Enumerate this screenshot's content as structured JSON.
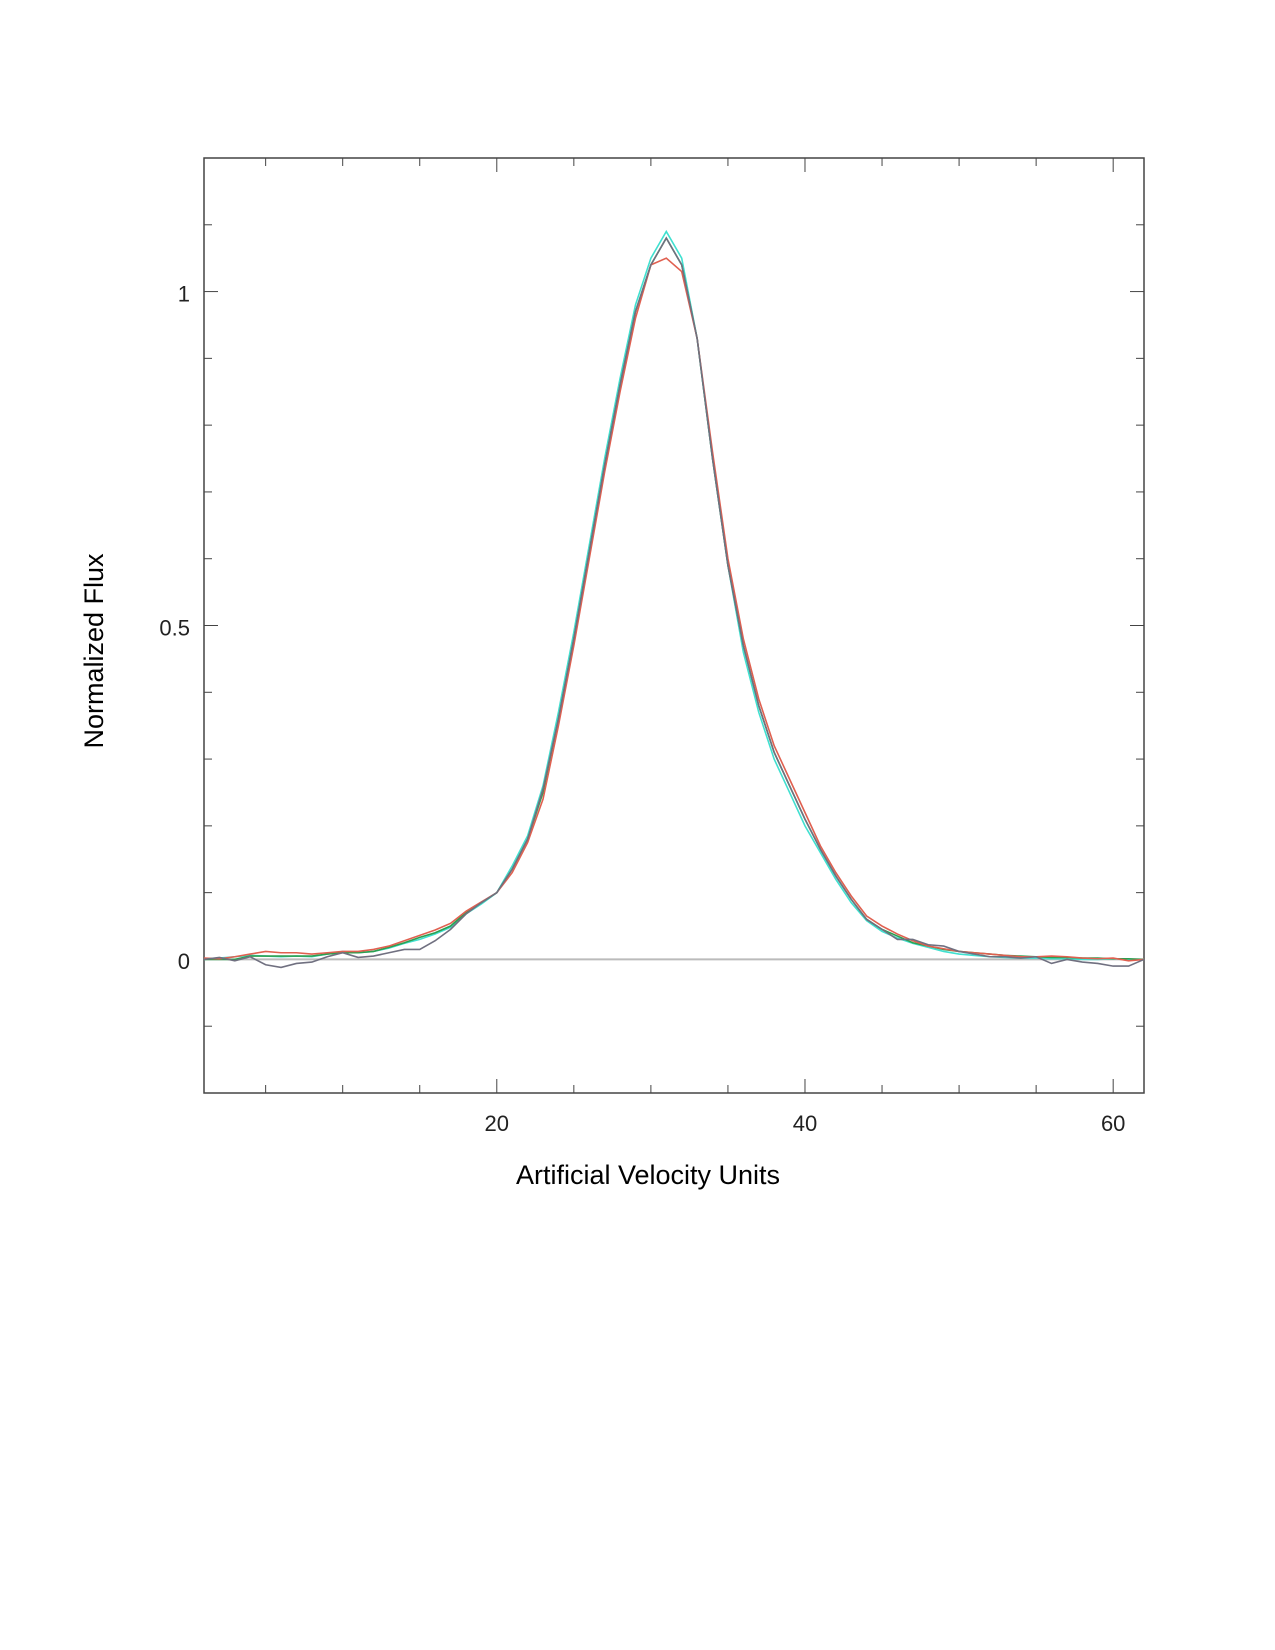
{
  "chart_data": {
    "type": "line",
    "xlabel": "Artificial Velocity Units",
    "ylabel": "Normalized Flux",
    "x": [
      1,
      2,
      3,
      4,
      5,
      6,
      7,
      8,
      9,
      10,
      11,
      12,
      13,
      14,
      15,
      16,
      17,
      18,
      19,
      20,
      21,
      22,
      23,
      24,
      25,
      26,
      27,
      28,
      29,
      30,
      31,
      32,
      33,
      34,
      35,
      36,
      37,
      38,
      39,
      40,
      41,
      42,
      43,
      44,
      45,
      46,
      47,
      48,
      49,
      50,
      51,
      52,
      53,
      54,
      55,
      56,
      57,
      58,
      59,
      60,
      61,
      62
    ],
    "series": [
      {
        "name": "cyan",
        "color": "#40e0d0",
        "values": [
          0,
          0.002,
          0.004,
          0.006,
          0.005,
          0.004,
          0.005,
          0.004,
          0.008,
          0.012,
          0.01,
          0.012,
          0.017,
          0.024,
          0.03,
          0.038,
          0.048,
          0.068,
          0.083,
          0.1,
          0.14,
          0.185,
          0.26,
          0.37,
          0.49,
          0.62,
          0.75,
          0.87,
          0.98,
          1.05,
          1.09,
          1.05,
          0.93,
          0.75,
          0.59,
          0.46,
          0.37,
          0.3,
          0.25,
          0.2,
          0.16,
          0.12,
          0.085,
          0.058,
          0.042,
          0.032,
          0.024,
          0.018,
          0.012,
          0.008,
          0.006,
          0.004,
          0.003,
          0.002,
          0.002,
          0.001,
          0.001,
          0,
          0,
          0.001,
          0,
          0
        ]
      },
      {
        "name": "green",
        "color": "#2e9e4f",
        "values": [
          0,
          0,
          0,
          0.005,
          0.005,
          0.005,
          0.005,
          0.005,
          0.008,
          0.01,
          0.01,
          0.012,
          0.018,
          0.025,
          0.033,
          0.04,
          0.05,
          0.07,
          0.085,
          0.1,
          0.135,
          0.18,
          0.25,
          0.36,
          0.48,
          0.61,
          0.74,
          0.86,
          0.97,
          1.04,
          1.08,
          1.04,
          0.93,
          0.75,
          0.59,
          0.47,
          0.38,
          0.31,
          0.26,
          0.21,
          0.165,
          0.125,
          0.09,
          0.06,
          0.045,
          0.035,
          0.025,
          0.02,
          0.015,
          0.012,
          0.01,
          0.008,
          0.006,
          0.005,
          0.004,
          0.003,
          0.003,
          0.002,
          0.002,
          0.001,
          0.001,
          0
        ]
      },
      {
        "name": "red",
        "color": "#e06050",
        "values": [
          0.002,
          0.001,
          0.004,
          0.008,
          0.012,
          0.01,
          0.01,
          0.008,
          0.01,
          0.012,
          0.012,
          0.015,
          0.02,
          0.028,
          0.036,
          0.044,
          0.054,
          0.072,
          0.086,
          0.1,
          0.13,
          0.175,
          0.24,
          0.35,
          0.47,
          0.6,
          0.73,
          0.85,
          0.96,
          1.04,
          1.05,
          1.03,
          0.93,
          0.76,
          0.6,
          0.48,
          0.39,
          0.32,
          0.27,
          0.22,
          0.17,
          0.13,
          0.095,
          0.065,
          0.05,
          0.038,
          0.028,
          0.02,
          0.016,
          0.012,
          0.01,
          0.008,
          0.006,
          0.004,
          0.004,
          0.005,
          0.004,
          0.002,
          0.001,
          0.002,
          -0.002,
          0
        ]
      },
      {
        "name": "gray",
        "color": "#707080",
        "values": [
          0,
          0.003,
          -0.002,
          0.004,
          -0.008,
          -0.012,
          -0.006,
          -0.004,
          0.004,
          0.01,
          0.003,
          0.005,
          0.01,
          0.015,
          0.015,
          0.028,
          0.045,
          0.068,
          0.085,
          0.1,
          0.135,
          0.18,
          0.255,
          0.36,
          0.48,
          0.61,
          0.74,
          0.86,
          0.97,
          1.04,
          1.08,
          1.04,
          0.93,
          0.75,
          0.59,
          0.47,
          0.38,
          0.31,
          0.26,
          0.21,
          0.165,
          0.125,
          0.09,
          0.06,
          0.045,
          0.03,
          0.03,
          0.022,
          0.02,
          0.012,
          0.008,
          0.004,
          0.004,
          0.002,
          0.004,
          -0.006,
          0,
          -0.004,
          -0.006,
          -0.01,
          -0.01,
          0
        ]
      }
    ],
    "xlim": [
      1,
      62
    ],
    "ylim": [
      -0.2,
      1.2
    ],
    "xticks": [
      20,
      40,
      60
    ],
    "yticks": [
      0,
      0.5,
      1
    ],
    "xticks_minor": [
      5,
      10,
      15,
      25,
      30,
      35,
      45,
      50,
      55
    ],
    "yticks_minor": [
      -0.1,
      0.1,
      0.2,
      0.3,
      0.4,
      0.6,
      0.7,
      0.8,
      0.9,
      1.1
    ],
    "zero_line": true
  }
}
